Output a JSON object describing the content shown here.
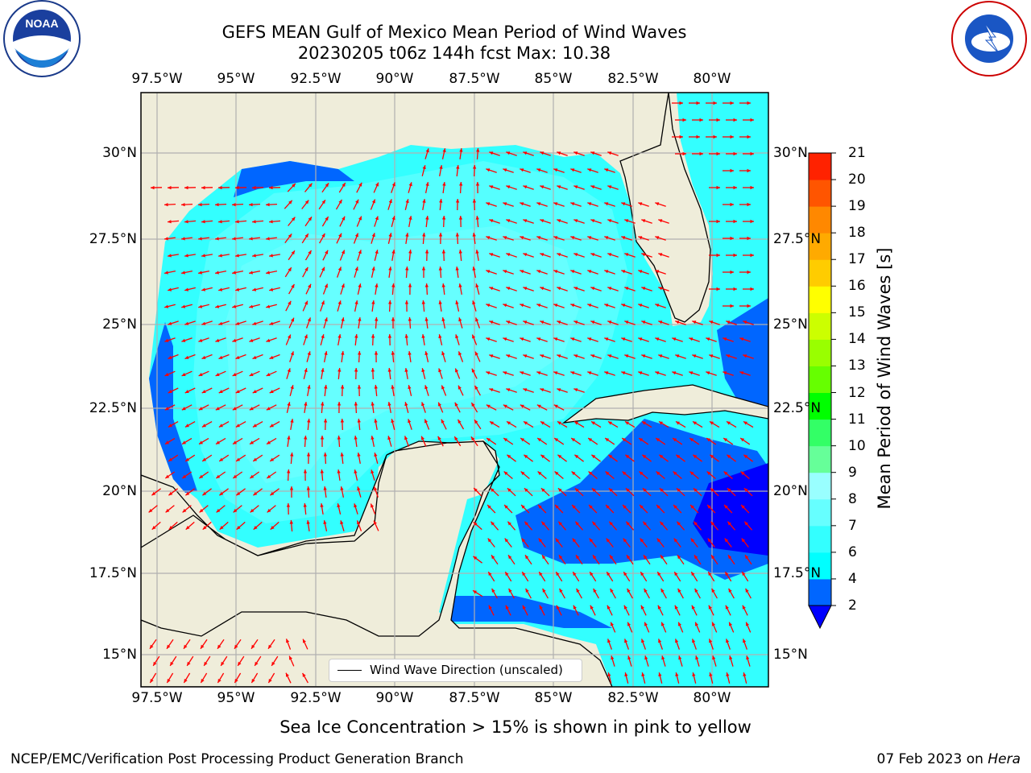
{
  "header": {
    "title_line1": "GEFS MEAN Gulf of Mexico Mean Period of Wind Waves",
    "title_line2": "20230205 t06z 144h fcst   Max: 10.38"
  },
  "logos": {
    "left_logo_text": "NOAA",
    "left_logo_ring_text": "NATIONAL OCEANIC AND ATMOSPHERIC ADMINISTRATION · U.S. DEPARTMENT OF COMMERCE",
    "right_logo_ring_text": "NATIONAL WEATHER SERVICE"
  },
  "map": {
    "lon_labels": [
      "97.5°W",
      "95°W",
      "92.5°W",
      "90°W",
      "87.5°W",
      "85°W",
      "82.5°W",
      "80°W"
    ],
    "lat_labels_left": [
      "30°N",
      "27.5°N",
      "25°N",
      "22.5°N",
      "20°N",
      "17.5°N",
      "15°N"
    ],
    "lat_labels_right": [
      "30°N",
      "27.5°N",
      "25°N",
      "22.5°N",
      "20°N",
      "17.5°N",
      "15°N"
    ],
    "legend_label": "Wind Wave Direction (unscaled)",
    "land_color": "#efedda",
    "arrow_color": "#ff0000",
    "grid": true
  },
  "colorbar": {
    "label": "Mean Period of Wind Waves [s]",
    "ticks": [
      "2",
      "4",
      "6",
      "7",
      "8",
      "9",
      "10",
      "11",
      "12",
      "13",
      "14",
      "15",
      "16",
      "17",
      "18",
      "19",
      "20",
      "21"
    ],
    "colors": [
      "#0066ff",
      "#00ffff",
      "#33ffff",
      "#66ffff",
      "#99ffff",
      "#66ff99",
      "#33ff66",
      "#00ff00",
      "#66ff00",
      "#99ff00",
      "#ccff00",
      "#ffff00",
      "#ffcc00",
      "#ffaa00",
      "#ff8800",
      "#ff5500",
      "#ff2200"
    ],
    "extend_color": "#0000ff"
  },
  "footer": {
    "ice_note": "Sea Ice Concentration > 15% is shown in pink to yellow",
    "credit": "NCEP/EMC/Verification Post Processing Product Generation Branch",
    "date": "07 Feb 2023 on ",
    "machine": "Hera"
  }
}
